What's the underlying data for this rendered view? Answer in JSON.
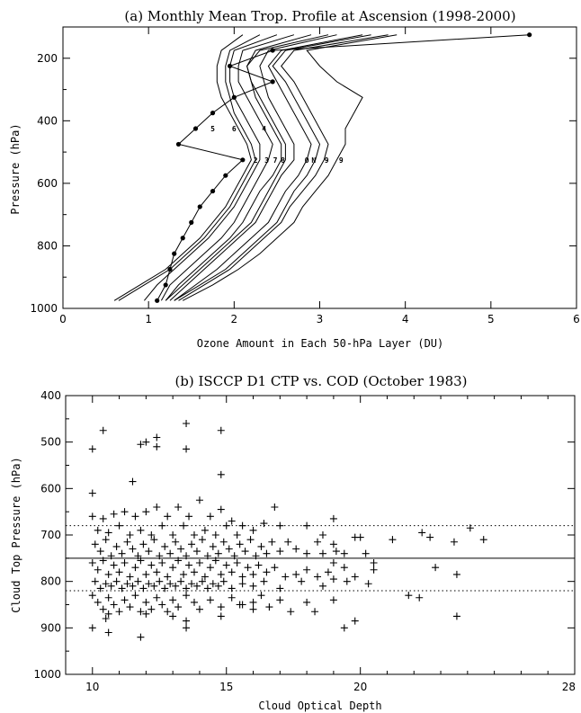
{
  "chart_data": [
    {
      "type": "line",
      "title": "(a) Monthly Mean Trop. Profile at Ascension (1998-2000)",
      "xlabel": "Ozone Amount in Each 50-hPa Layer (DU)",
      "ylabel": "Pressure (hPa)",
      "xlim": [
        0,
        6
      ],
      "ylim": [
        1000,
        100
      ],
      "xticks": [
        "0",
        "1",
        "2",
        "3",
        "4",
        "5",
        "6"
      ],
      "yticks": [
        "200",
        "400",
        "600",
        "800",
        "1000"
      ],
      "grid": false,
      "legend": "none",
      "y_pressure": [
        975,
        925,
        875,
        825,
        775,
        725,
        675,
        625,
        575,
        525,
        475,
        425,
        375,
        325,
        275,
        225,
        175,
        125
      ],
      "series": [
        {
          "values": [
            0.6,
            0.9,
            1.2,
            1.4,
            1.6,
            1.75,
            1.9,
            2.0,
            2.1,
            2.2,
            2.15,
            2.05,
            1.95,
            1.85,
            1.8,
            1.8,
            1.85,
            2.1
          ]
        },
        {
          "values": [
            0.65,
            0.95,
            1.25,
            1.45,
            1.65,
            1.8,
            1.95,
            2.05,
            2.15,
            2.25,
            2.2,
            2.1,
            2.0,
            1.95,
            1.9,
            1.9,
            1.95,
            2.3
          ]
        },
        {
          "values": [
            0.95,
            1.1,
            1.3,
            1.5,
            1.7,
            1.85,
            2.0,
            2.1,
            2.2,
            2.3,
            2.3,
            2.2,
            2.1,
            2.0,
            1.95,
            1.95,
            2.0,
            2.5
          ]
        },
        {
          "values": [
            1.15,
            1.25,
            1.45,
            1.65,
            1.85,
            2.0,
            2.1,
            2.2,
            2.3,
            2.4,
            2.45,
            2.35,
            2.25,
            2.15,
            2.05,
            2.05,
            2.1,
            2.7
          ]
        },
        {
          "values": [
            1.2,
            1.35,
            1.55,
            1.75,
            1.95,
            2.1,
            2.2,
            2.3,
            2.45,
            2.55,
            2.55,
            2.45,
            2.35,
            2.25,
            2.2,
            2.15,
            2.25,
            2.9
          ]
        },
        {
          "values": [
            1.25,
            1.45,
            1.65,
            1.85,
            2.05,
            2.25,
            2.35,
            2.45,
            2.55,
            2.7,
            2.7,
            2.6,
            2.5,
            2.4,
            2.35,
            2.3,
            2.4,
            3.2
          ]
        },
        {
          "values": [
            1.3,
            1.55,
            1.8,
            2.0,
            2.2,
            2.4,
            2.5,
            2.6,
            2.75,
            2.85,
            2.9,
            2.8,
            2.7,
            2.6,
            2.5,
            2.4,
            2.55,
            3.5
          ]
        },
        {
          "values": [
            1.35,
            1.65,
            1.95,
            2.15,
            2.35,
            2.55,
            2.65,
            2.8,
            2.95,
            3.05,
            3.1,
            3.0,
            2.9,
            2.8,
            2.7,
            2.55,
            2.7,
            3.8
          ]
        },
        {
          "values": [
            1.4,
            1.75,
            2.05,
            2.3,
            2.5,
            2.7,
            2.8,
            2.95,
            3.1,
            3.2,
            3.3,
            3.3,
            3.4,
            3.5,
            3.2,
            3.0,
            2.85,
            3.9
          ]
        },
        {
          "values": [
            1.3,
            1.6,
            1.9,
            2.1,
            2.3,
            2.5,
            2.6,
            2.7,
            2.85,
            2.95,
            3.0,
            2.9,
            2.8,
            2.7,
            2.6,
            2.45,
            2.6,
            3.6
          ]
        },
        {
          "values": [
            1.2,
            1.4,
            1.6,
            1.8,
            2.0,
            2.2,
            2.3,
            2.4,
            2.5,
            2.6,
            2.6,
            2.5,
            2.4,
            2.3,
            2.2,
            2.15,
            2.3,
            3.1
          ]
        },
        {
          "name": "",
          "marker": "dot",
          "values": [
            1.1,
            1.2,
            1.25,
            1.3,
            1.4,
            1.5,
            1.6,
            1.75,
            1.9,
            2.1,
            1.35,
            1.55,
            1.75,
            2.0,
            2.45,
            1.95,
            2.45,
            5.45
          ]
        }
      ],
      "month_labels": [
        {
          "text": "5",
          "x": 1.75,
          "y": 425
        },
        {
          "text": "6",
          "x": 2.0,
          "y": 425
        },
        {
          "text": "4",
          "x": 2.35,
          "y": 425
        },
        {
          "text": "2",
          "x": 2.25,
          "y": 525
        },
        {
          "text": "3",
          "x": 2.38,
          "y": 525
        },
        {
          "text": "7",
          "x": 2.48,
          "y": 525
        },
        {
          "text": "8",
          "x": 2.57,
          "y": 525
        },
        {
          "text": "O",
          "x": 2.85,
          "y": 525
        },
        {
          "text": "N",
          "x": 2.93,
          "y": 525
        },
        {
          "text": "9",
          "x": 3.08,
          "y": 525
        },
        {
          "text": "9",
          "x": 3.25,
          "y": 525
        }
      ]
    },
    {
      "type": "scatter",
      "title": "(b) ISCCP D1 CTP vs. COD (October 1983)",
      "xlabel": "Cloud Optical Depth",
      "ylabel": "Cloud Top Pressure (hPa)",
      "xlim": [
        9,
        28
      ],
      "ylim": [
        1000,
        400
      ],
      "xticks": [
        "10",
        "15",
        "20",
        "28"
      ],
      "yticks": [
        "400",
        "500",
        "600",
        "700",
        "800",
        "900",
        "1000"
      ],
      "grid": false,
      "legend": "none",
      "marker": "plus",
      "hlines": [
        {
          "y": 680,
          "style": "dotted"
        },
        {
          "y": 750,
          "style": "solid"
        },
        {
          "y": 820,
          "style": "dotted"
        }
      ],
      "points": [
        [
          10.0,
          515
        ],
        [
          10.4,
          475
        ],
        [
          11.8,
          505
        ],
        [
          12.0,
          500
        ],
        [
          12.4,
          490
        ],
        [
          12.4,
          510
        ],
        [
          13.5,
          460
        ],
        [
          13.5,
          515
        ],
        [
          14.8,
          475
        ],
        [
          14.8,
          570
        ],
        [
          11.5,
          585
        ],
        [
          10.0,
          610
        ],
        [
          10.0,
          660
        ],
        [
          10.2,
          690
        ],
        [
          10.4,
          665
        ],
        [
          10.6,
          695
        ],
        [
          10.8,
          655
        ],
        [
          11.0,
          680
        ],
        [
          11.2,
          650
        ],
        [
          11.4,
          700
        ],
        [
          11.6,
          660
        ],
        [
          11.8,
          690
        ],
        [
          12.0,
          650
        ],
        [
          12.2,
          700
        ],
        [
          12.4,
          640
        ],
        [
          12.6,
          680
        ],
        [
          12.8,
          660
        ],
        [
          13.0,
          700
        ],
        [
          13.2,
          640
        ],
        [
          13.4,
          680
        ],
        [
          13.6,
          660
        ],
        [
          13.8,
          700
        ],
        [
          14.0,
          625
        ],
        [
          14.2,
          690
        ],
        [
          14.4,
          660
        ],
        [
          14.6,
          700
        ],
        [
          14.8,
          645
        ],
        [
          15.0,
          680
        ],
        [
          15.2,
          670
        ],
        [
          15.4,
          700
        ],
        [
          15.6,
          680
        ],
        [
          16.0,
          690
        ],
        [
          16.4,
          675
        ],
        [
          16.8,
          640
        ],
        [
          17.0,
          680
        ],
        [
          18.0,
          680
        ],
        [
          19.0,
          665
        ],
        [
          18.6,
          700
        ],
        [
          10.1,
          720
        ],
        [
          10.3,
          735
        ],
        [
          10.5,
          710
        ],
        [
          10.7,
          745
        ],
        [
          10.9,
          725
        ],
        [
          11.1,
          740
        ],
        [
          11.3,
          715
        ],
        [
          11.5,
          730
        ],
        [
          11.7,
          745
        ],
        [
          11.9,
          720
        ],
        [
          12.1,
          735
        ],
        [
          12.3,
          710
        ],
        [
          12.5,
          745
        ],
        [
          12.7,
          725
        ],
        [
          12.9,
          740
        ],
        [
          13.1,
          715
        ],
        [
          13.3,
          730
        ],
        [
          13.5,
          745
        ],
        [
          13.7,
          720
        ],
        [
          13.9,
          735
        ],
        [
          14.1,
          710
        ],
        [
          14.3,
          745
        ],
        [
          14.5,
          725
        ],
        [
          14.7,
          740
        ],
        [
          14.9,
          715
        ],
        [
          15.1,
          730
        ],
        [
          15.3,
          745
        ],
        [
          15.5,
          720
        ],
        [
          15.7,
          735
        ],
        [
          15.9,
          710
        ],
        [
          16.1,
          745
        ],
        [
          16.3,
          725
        ],
        [
          16.5,
          740
        ],
        [
          16.7,
          715
        ],
        [
          17.0,
          735
        ],
        [
          17.6,
          730
        ],
        [
          18.0,
          740
        ],
        [
          18.4,
          715
        ],
        [
          18.6,
          740
        ],
        [
          19.0,
          720
        ],
        [
          19.4,
          740
        ],
        [
          19.8,
          705
        ],
        [
          20.2,
          740
        ],
        [
          21.2,
          710
        ],
        [
          22.3,
          695
        ],
        [
          22.6,
          705
        ],
        [
          23.5,
          715
        ],
        [
          24.1,
          685
        ],
        [
          24.6,
          710
        ],
        [
          17.3,
          715
        ],
        [
          20.0,
          705
        ],
        [
          19.1,
          735
        ],
        [
          10.0,
          760
        ],
        [
          10.2,
          775
        ],
        [
          10.4,
          755
        ],
        [
          10.6,
          785
        ],
        [
          10.8,
          765
        ],
        [
          11.0,
          780
        ],
        [
          11.2,
          760
        ],
        [
          11.4,
          790
        ],
        [
          11.6,
          770
        ],
        [
          11.8,
          755
        ],
        [
          12.0,
          785
        ],
        [
          12.2,
          765
        ],
        [
          12.4,
          780
        ],
        [
          12.6,
          760
        ],
        [
          12.8,
          790
        ],
        [
          13.0,
          770
        ],
        [
          13.2,
          755
        ],
        [
          13.4,
          785
        ],
        [
          13.6,
          765
        ],
        [
          13.8,
          780
        ],
        [
          14.0,
          760
        ],
        [
          14.2,
          790
        ],
        [
          14.4,
          770
        ],
        [
          14.6,
          755
        ],
        [
          14.8,
          785
        ],
        [
          15.0,
          765
        ],
        [
          15.2,
          780
        ],
        [
          15.4,
          760
        ],
        [
          15.6,
          790
        ],
        [
          15.8,
          770
        ],
        [
          16.0,
          785
        ],
        [
          16.2,
          765
        ],
        [
          16.5,
          780
        ],
        [
          16.8,
          770
        ],
        [
          17.2,
          790
        ],
        [
          17.6,
          785
        ],
        [
          18.0,
          775
        ],
        [
          18.4,
          790
        ],
        [
          18.8,
          780
        ],
        [
          19.0,
          760
        ],
        [
          19.4,
          770
        ],
        [
          19.8,
          790
        ],
        [
          20.5,
          760
        ],
        [
          20.5,
          775
        ],
        [
          22.8,
          770
        ],
        [
          23.6,
          785
        ],
        [
          10.1,
          800
        ],
        [
          10.3,
          815
        ],
        [
          10.5,
          805
        ],
        [
          10.7,
          810
        ],
        [
          10.9,
          800
        ],
        [
          11.1,
          815
        ],
        [
          11.3,
          805
        ],
        [
          11.5,
          810
        ],
        [
          11.7,
          800
        ],
        [
          11.9,
          815
        ],
        [
          12.1,
          805
        ],
        [
          12.3,
          810
        ],
        [
          12.5,
          800
        ],
        [
          12.7,
          815
        ],
        [
          12.9,
          805
        ],
        [
          13.1,
          810
        ],
        [
          13.3,
          800
        ],
        [
          13.5,
          815
        ],
        [
          13.7,
          805
        ],
        [
          13.9,
          810
        ],
        [
          14.1,
          800
        ],
        [
          14.3,
          815
        ],
        [
          14.5,
          805
        ],
        [
          14.7,
          810
        ],
        [
          14.9,
          800
        ],
        [
          15.2,
          815
        ],
        [
          15.6,
          805
        ],
        [
          16.0,
          810
        ],
        [
          16.4,
          800
        ],
        [
          17.0,
          815
        ],
        [
          17.8,
          800
        ],
        [
          18.6,
          810
        ],
        [
          19.0,
          795
        ],
        [
          20.3,
          805
        ],
        [
          19.5,
          800
        ],
        [
          10.0,
          830
        ],
        [
          10.2,
          845
        ],
        [
          10.4,
          860
        ],
        [
          10.6,
          835
        ],
        [
          10.8,
          850
        ],
        [
          11.0,
          865
        ],
        [
          11.2,
          840
        ],
        [
          11.4,
          855
        ],
        [
          11.6,
          830
        ],
        [
          11.8,
          865
        ],
        [
          12.0,
          845
        ],
        [
          12.2,
          860
        ],
        [
          12.4,
          835
        ],
        [
          12.6,
          850
        ],
        [
          12.8,
          865
        ],
        [
          13.0,
          840
        ],
        [
          13.2,
          855
        ],
        [
          13.5,
          830
        ],
        [
          13.8,
          845
        ],
        [
          14.0,
          860
        ],
        [
          14.4,
          840
        ],
        [
          14.8,
          855
        ],
        [
          15.2,
          835
        ],
        [
          15.6,
          850
        ],
        [
          16.0,
          845
        ],
        [
          16.3,
          830
        ],
        [
          16.6,
          855
        ],
        [
          17.0,
          840
        ],
        [
          17.4,
          865
        ],
        [
          18.0,
          845
        ],
        [
          18.3,
          865
        ],
        [
          19.0,
          840
        ],
        [
          21.8,
          830
        ],
        [
          22.2,
          835
        ],
        [
          10.0,
          900
        ],
        [
          10.6,
          910
        ],
        [
          11.8,
          920
        ],
        [
          13.5,
          900
        ],
        [
          13.5,
          885
        ],
        [
          14.8,
          875
        ],
        [
          10.6,
          870
        ],
        [
          16.0,
          860
        ],
        [
          15.5,
          850
        ],
        [
          19.4,
          900
        ],
        [
          19.8,
          885
        ],
        [
          23.6,
          875
        ],
        [
          10.5,
          880
        ],
        [
          12.0,
          870
        ],
        [
          13.0,
          875
        ]
      ]
    }
  ]
}
